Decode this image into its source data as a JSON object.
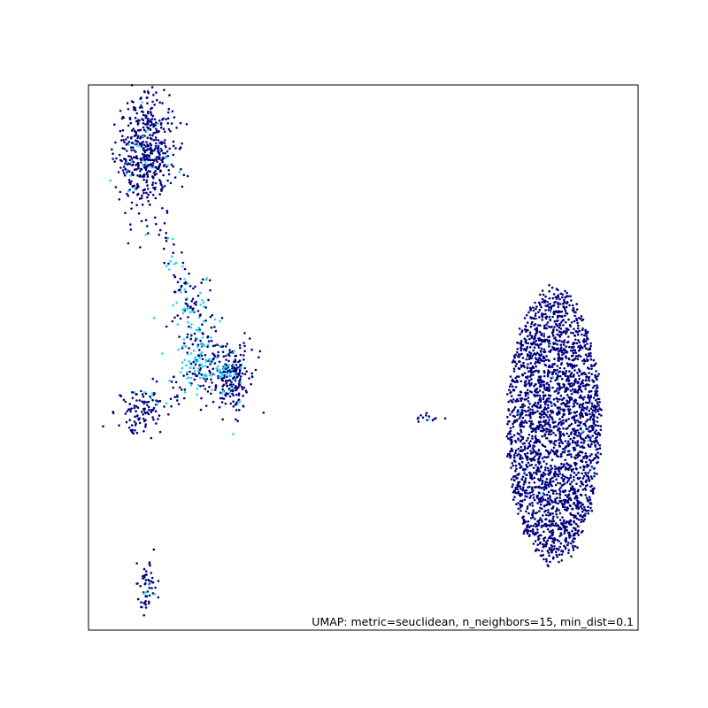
{
  "chart_data": {
    "type": "scatter",
    "annotation": "UMAP: metric=seuclidean, n_neighbors=15, min_dist=0.1",
    "xlim": [
      0,
      1
    ],
    "ylim": [
      0,
      1
    ],
    "xticks": [],
    "yticks": [],
    "grid": false,
    "legend": "none",
    "marker_size": 2,
    "colors": {
      "dominant": "#00007f",
      "minority": "#1ad8f0"
    },
    "clusters": [
      {
        "cx": 0.103,
        "cy": 0.875,
        "sx": 0.026,
        "sy": 0.055,
        "n": 520,
        "minority_rate": 0.03
      },
      {
        "cx": 0.093,
        "cy": 0.404,
        "sx": 0.02,
        "sy": 0.02,
        "n": 90,
        "minority_rate": 0.0
      },
      {
        "cx": 0.262,
        "cy": 0.468,
        "sx": 0.02,
        "sy": 0.032,
        "n": 180,
        "minority_rate": 0.05
      },
      {
        "cx": 0.105,
        "cy": 0.085,
        "sx": 0.01,
        "sy": 0.025,
        "n": 55,
        "minority_rate": 0.05
      },
      {
        "cx": 0.612,
        "cy": 0.387,
        "sx": 0.015,
        "sy": 0.006,
        "n": 14,
        "minority_rate": 0.1
      },
      {
        "cx": 0.847,
        "cy": 0.375,
        "sx": 0.085,
        "sy": 0.25,
        "n": 2500,
        "minority_rate": 0.004
      }
    ],
    "filaments": [
      {
        "from": [
          0.135,
          0.74
        ],
        "to": [
          0.185,
          0.6
        ],
        "n": 40,
        "jitter": 0.01,
        "minority_rate": 0.2
      },
      {
        "from": [
          0.185,
          0.62
        ],
        "to": [
          0.205,
          0.45
        ],
        "n": 160,
        "jitter": 0.022,
        "minority_rate": 0.4
      },
      {
        "from": [
          0.2,
          0.5
        ],
        "to": [
          0.26,
          0.46
        ],
        "n": 90,
        "jitter": 0.02,
        "minority_rate": 0.35
      },
      {
        "from": [
          0.2,
          0.48
        ],
        "to": [
          0.1,
          0.41
        ],
        "n": 55,
        "jitter": 0.018,
        "minority_rate": 0.3
      },
      {
        "from": [
          0.27,
          0.44
        ],
        "to": [
          0.275,
          0.4
        ],
        "n": 10,
        "jitter": 0.008,
        "minority_rate": 0.1
      }
    ]
  }
}
